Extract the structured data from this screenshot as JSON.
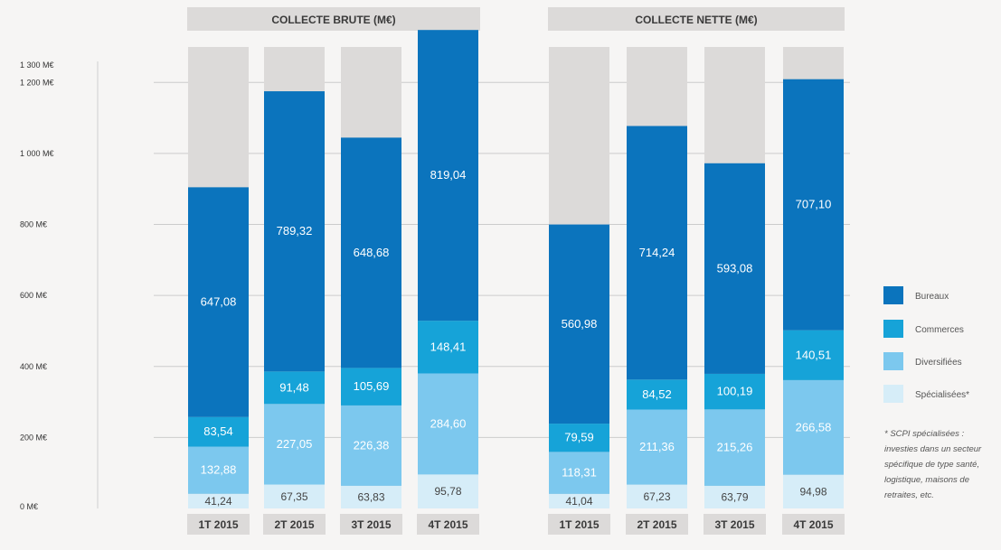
{
  "chart_data": {
    "type": "bar",
    "stacked": true,
    "y_unit_suffix": " M€",
    "ylim": [
      0,
      1300
    ],
    "yticks": [
      0,
      200,
      400,
      600,
      800,
      1000,
      1200,
      1300
    ],
    "ytick_labels": [
      "0 M€",
      "200 M€",
      "400 M€",
      "600 M€",
      "800 M€",
      "1 000 M€",
      "1 200 M€",
      "1 300 M€"
    ],
    "grid": true,
    "legend_position": "right",
    "legend": [
      {
        "name": "Bureaux",
        "color": "#0b74bd"
      },
      {
        "name": "Commerces",
        "color": "#16a3d8"
      },
      {
        "name": "Diversifiées",
        "color": "#7cc8ee"
      },
      {
        "name": "Spécialisées*",
        "color": "#d6edf8"
      }
    ],
    "series_order_bottom_up": [
      "Spécialisées*",
      "Diversifiées",
      "Commerces",
      "Bureaux"
    ],
    "background_color": "#dcdad9",
    "note_lines": [
      "* SCPI spécialisées :",
      "investies dans un secteur",
      "spécifique de type santé,",
      "logistique, maisons de",
      "retraites, etc."
    ],
    "panels": [
      {
        "title": "COLLECTE BRUTE (M€)",
        "categories": [
          "1T 2015",
          "2T 2015",
          "3T 2015",
          "4T 2015"
        ],
        "series": [
          {
            "name": "Spécialisées*",
            "values": [
              41.24,
              67.35,
              63.83,
              95.78
            ],
            "labels": [
              "41,24",
              "67,35",
              "63,83",
              "95,78"
            ]
          },
          {
            "name": "Diversifiées",
            "values": [
              132.88,
              227.05,
              226.38,
              284.6
            ],
            "labels": [
              "132,88",
              "227,05",
              "226,38",
              "284,60"
            ]
          },
          {
            "name": "Commerces",
            "values": [
              83.54,
              91.48,
              105.69,
              148.41
            ],
            "labels": [
              "83,54",
              "91,48",
              "105,69",
              "148,41"
            ]
          },
          {
            "name": "Bureaux",
            "values": [
              647.08,
              789.32,
              648.68,
              819.04
            ],
            "labels": [
              "647,08",
              "789,32",
              "648,68",
              "819,04"
            ]
          }
        ]
      },
      {
        "title": "COLLECTE NETTE (M€)",
        "categories": [
          "1T 2015",
          "2T 2015",
          "3T 2015",
          "4T 2015"
        ],
        "series": [
          {
            "name": "Spécialisées*",
            "values": [
              41.04,
              67.23,
              63.79,
              94.98
            ],
            "labels": [
              "41,04",
              "67,23",
              "63,79",
              "94,98"
            ]
          },
          {
            "name": "Diversifiées",
            "values": [
              118.31,
              211.36,
              215.26,
              266.58
            ],
            "labels": [
              "118,31",
              "211,36",
              "215,26",
              "266,58"
            ]
          },
          {
            "name": "Commerces",
            "values": [
              79.59,
              84.52,
              100.19,
              140.51
            ],
            "labels": [
              "79,59",
              "84,52",
              "100,19",
              "140,51"
            ]
          },
          {
            "name": "Bureaux",
            "values": [
              560.98,
              714.24,
              593.08,
              707.1
            ],
            "labels": [
              "560,98",
              "714,24",
              "593,08",
              "707,10"
            ]
          }
        ]
      }
    ]
  }
}
